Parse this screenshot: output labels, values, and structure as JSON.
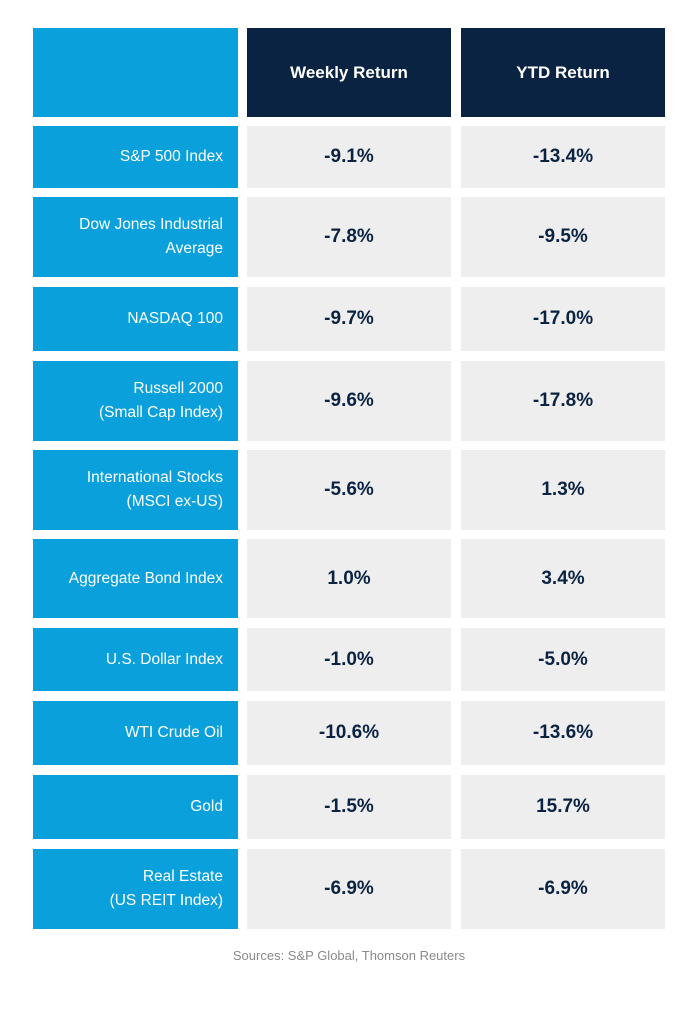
{
  "header": {
    "col1": "Weekly Return",
    "col2": "YTD Return"
  },
  "rows": [
    {
      "line1": "S&P 500 Index",
      "line2": "",
      "weekly": "-9.1%",
      "ytd": "-13.4%"
    },
    {
      "line1": "Dow Jones Industrial",
      "line2": "Average",
      "weekly": "-7.8%",
      "ytd": "-9.5%"
    },
    {
      "line1": "NASDAQ 100",
      "line2": "",
      "weekly": "-9.7%",
      "ytd": "-17.0%"
    },
    {
      "line1": "Russell 2000",
      "line2": "(Small Cap Index)",
      "weekly": "-9.6%",
      "ytd": "-17.8%"
    },
    {
      "line1": "International Stocks",
      "line2": "(MSCI ex-US)",
      "weekly": "-5.6%",
      "ytd": "1.3%"
    },
    {
      "line1": "Aggregate Bond Index",
      "line2": "",
      "weekly": "1.0%",
      "ytd": "3.4%"
    },
    {
      "line1": "U.S. Dollar Index",
      "line2": "",
      "weekly": "-1.0%",
      "ytd": "-5.0%"
    },
    {
      "line1": "WTI Crude Oil",
      "line2": "",
      "weekly": "-10.6%",
      "ytd": "-13.6%"
    },
    {
      "line1": "Gold",
      "line2": "",
      "weekly": "-1.5%",
      "ytd": "15.7%"
    },
    {
      "line1": "Real Estate",
      "line2": "(US REIT Index)",
      "weekly": "-6.9%",
      "ytd": "-6.9%"
    }
  ],
  "footer": {
    "sources": "Sources:  S&P Global, Thomson Reuters"
  },
  "colors": {
    "label_bg": "#0aa0dc",
    "header_bg": "#0a2342",
    "cell_bg": "#efeeee",
    "value_text": "#0a2342"
  }
}
